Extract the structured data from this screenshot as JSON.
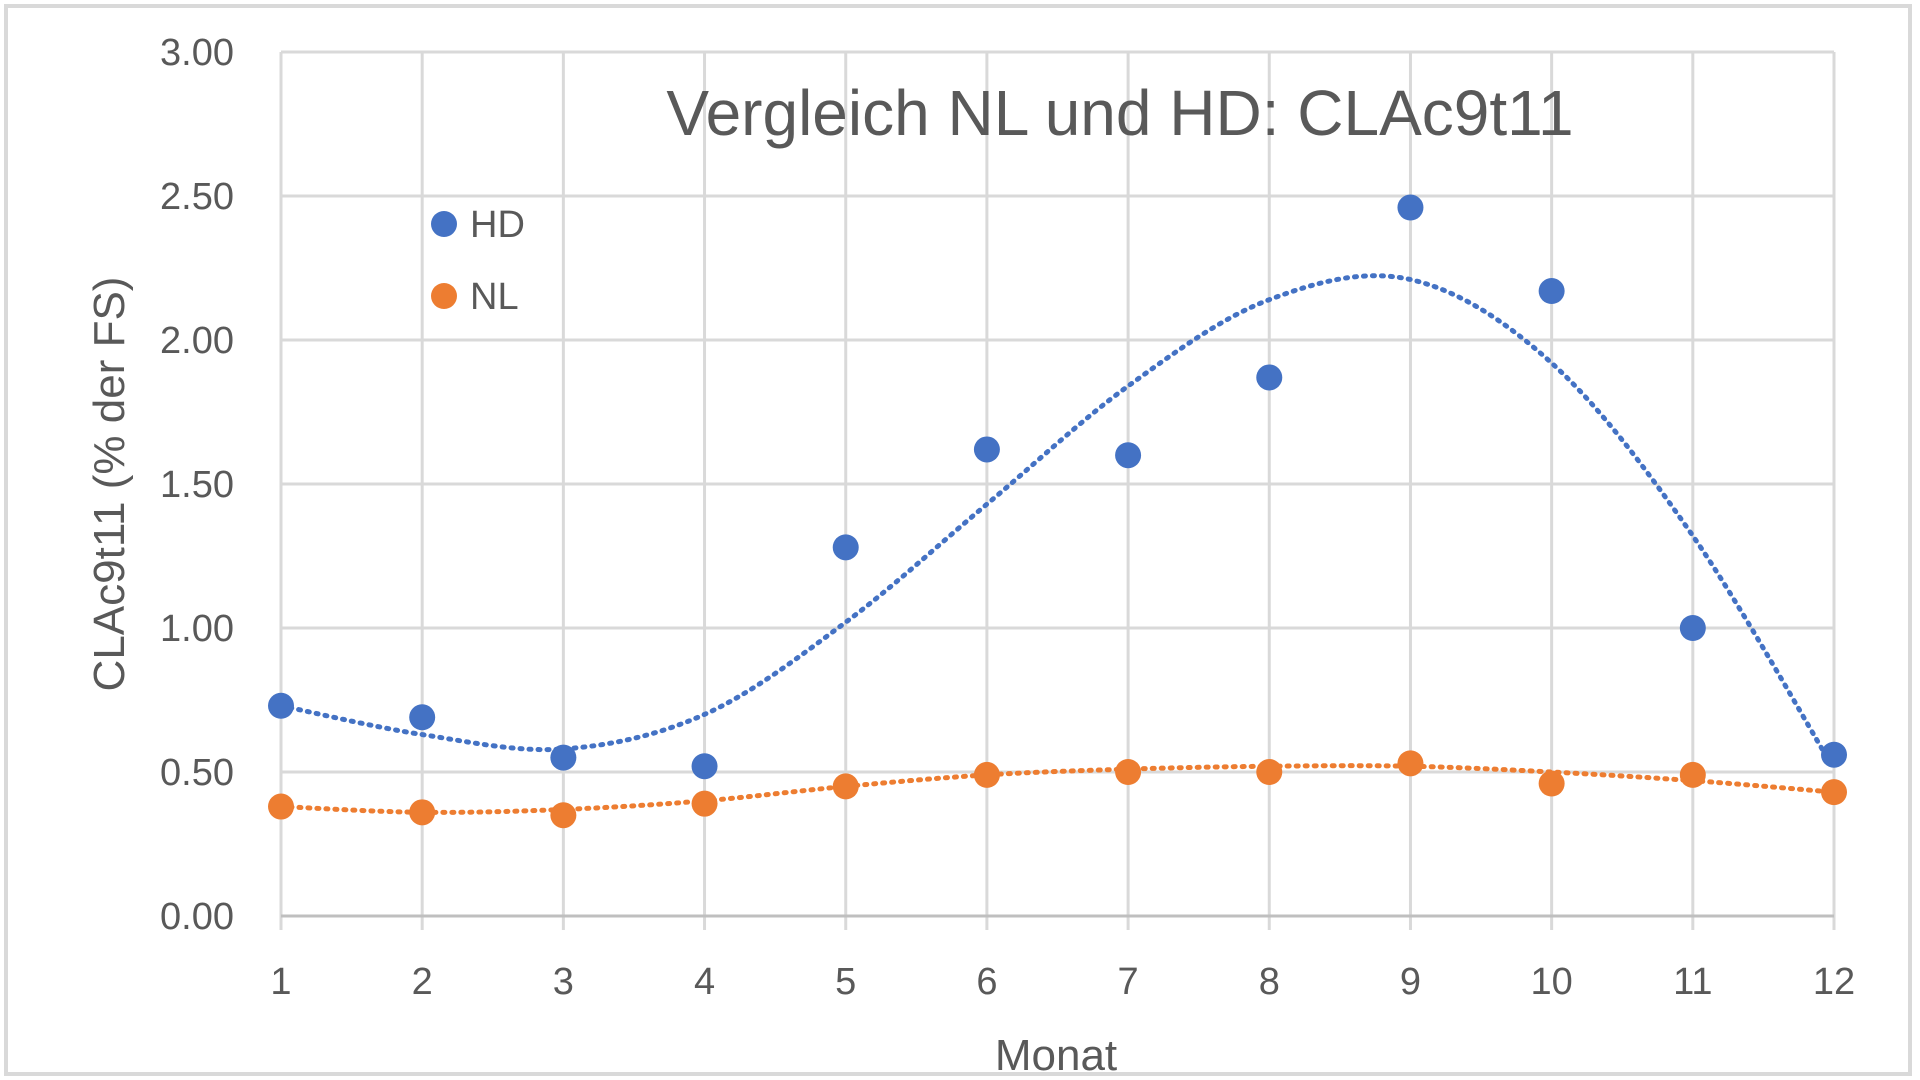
{
  "chart_data": {
    "type": "scatter",
    "title": "Vergleich NL und HD: CLAc9t11",
    "xlabel": "Monat",
    "ylabel": "CLAc9t11 (% der FS)",
    "x": [
      1,
      2,
      3,
      4,
      5,
      6,
      7,
      8,
      9,
      10,
      11,
      12
    ],
    "xlim": [
      1,
      12
    ],
    "ylim": [
      0,
      3
    ],
    "y_ticks": [
      "0.00",
      "0.50",
      "1.00",
      "1.50",
      "2.00",
      "2.50",
      "3.00"
    ],
    "grid": true,
    "legend_position": "top-left",
    "series": [
      {
        "name": "HD",
        "color": "#4472c4",
        "values": [
          0.73,
          0.69,
          0.55,
          0.52,
          1.28,
          1.62,
          1.6,
          1.87,
          2.46,
          2.17,
          1.0,
          0.56
        ],
        "trendline": "polynomial",
        "trend_values": [
          0.73,
          0.63,
          0.58,
          0.7,
          1.02,
          1.43,
          1.84,
          2.14,
          2.21,
          1.92,
          1.32,
          0.51
        ]
      },
      {
        "name": "NL",
        "color": "#ed7d31",
        "values": [
          0.38,
          0.36,
          0.35,
          0.39,
          0.45,
          0.49,
          0.5,
          0.5,
          0.53,
          0.46,
          0.49,
          0.43
        ],
        "trendline": "polynomial",
        "trend_values": [
          0.38,
          0.36,
          0.37,
          0.4,
          0.45,
          0.49,
          0.51,
          0.52,
          0.52,
          0.5,
          0.47,
          0.43
        ]
      }
    ]
  }
}
